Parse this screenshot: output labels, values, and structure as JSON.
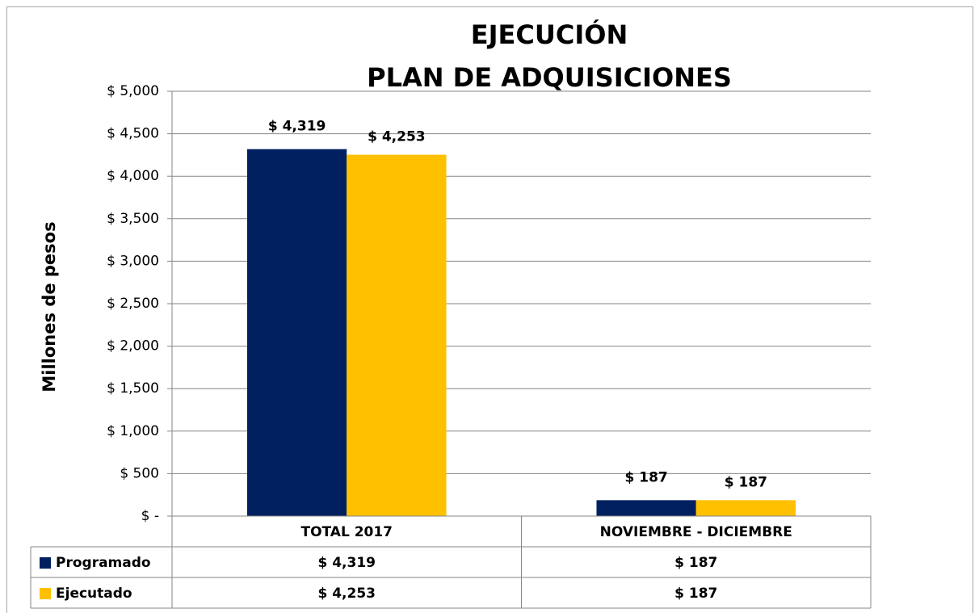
{
  "chart_data": {
    "type": "bar",
    "title": "EJECUCIÓN",
    "subtitle": "PLAN DE ADQUISICIONES",
    "y_label": "Millones de pesos",
    "categories": [
      "TOTAL 2017",
      "NOVIEMBRE - DICIEMBRE"
    ],
    "series": [
      {
        "name": "Programado",
        "color": "#002060",
        "values": [
          4319,
          187
        ],
        "value_labels": [
          "$ 4,319",
          "$ 187"
        ]
      },
      {
        "name": "Ejecutado",
        "color": "#FFC000",
        "values": [
          4253,
          187
        ],
        "value_labels": [
          "$ 4,253",
          "$ 187"
        ]
      }
    ],
    "ylim": [
      0,
      5000
    ],
    "yticks": [
      {
        "value": 0,
        "label": "$ -"
      },
      {
        "value": 500,
        "label": "$ 500"
      },
      {
        "value": 1000,
        "label": "$ 1,000"
      },
      {
        "value": 1500,
        "label": "$ 1,500"
      },
      {
        "value": 2000,
        "label": "$ 2,000"
      },
      {
        "value": 2500,
        "label": "$ 2,500"
      },
      {
        "value": 3000,
        "label": "$ 3,000"
      },
      {
        "value": 3500,
        "label": "$ 3,500"
      },
      {
        "value": 4000,
        "label": "$ 4,000"
      },
      {
        "value": 4500,
        "label": "$ 4,500"
      },
      {
        "value": 5000,
        "label": "$ 5,000"
      }
    ],
    "grid": true,
    "data_table": true
  }
}
